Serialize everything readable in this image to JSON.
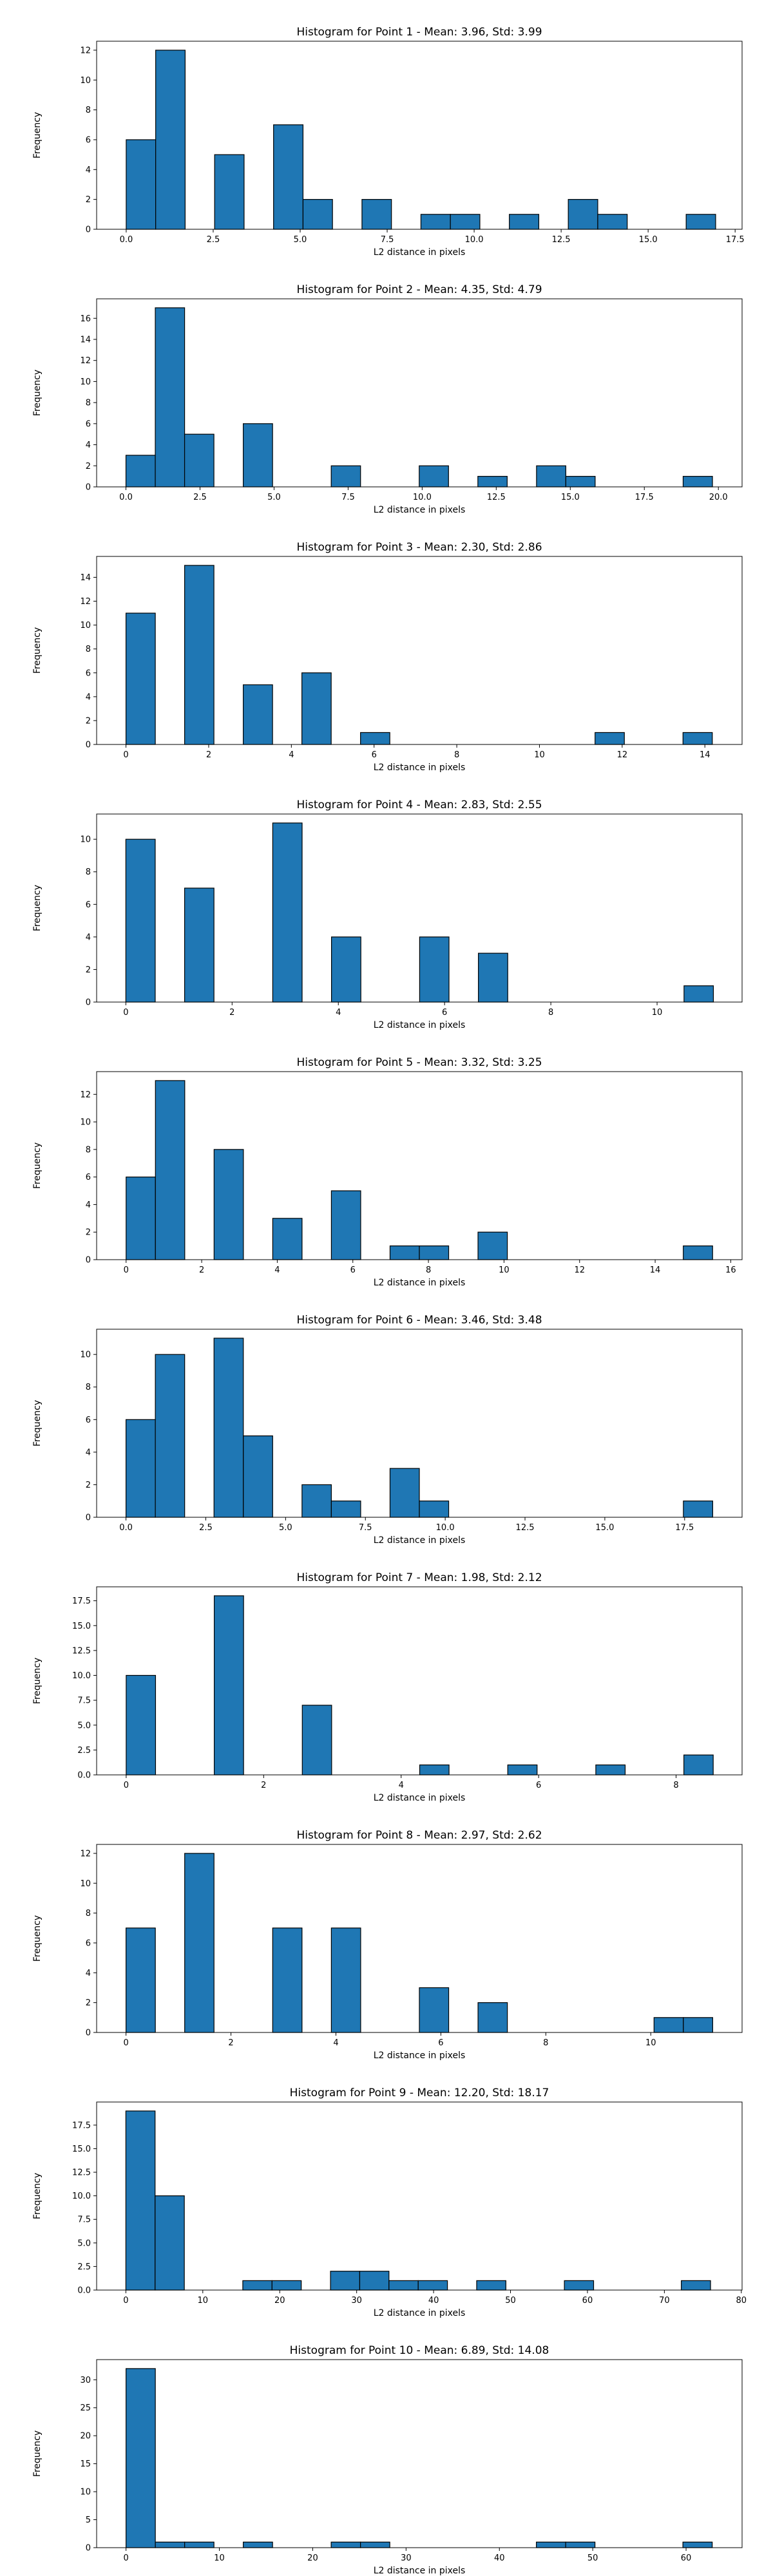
{
  "chart_data": [
    {
      "type": "bar",
      "title": "Histogram for Point 1 - Mean: 3.96, Std: 3.99",
      "xlabel": "L2 distance in pixels",
      "ylabel": "Frequency",
      "xlim": [
        -0.85,
        17.7
      ],
      "ylim": [
        0,
        12.6
      ],
      "xticks": [
        0.0,
        2.5,
        5.0,
        7.5,
        10.0,
        12.5,
        15.0,
        17.5
      ],
      "xtick_labels": [
        "0.0",
        "2.5",
        "5.0",
        "7.5",
        "10.0",
        "12.5",
        "15.0",
        "17.5"
      ],
      "yticks": [
        0,
        2,
        4,
        6,
        8,
        10,
        12
      ],
      "ytick_labels": [
        "0",
        "2",
        "4",
        "6",
        "8",
        "10",
        "12"
      ],
      "bin_edges": [
        0.0,
        0.847,
        1.694,
        2.541,
        3.388,
        4.235,
        5.082,
        5.929,
        6.776,
        7.623,
        8.47,
        9.317,
        10.164,
        11.011,
        11.858,
        12.705,
        13.552,
        14.399,
        15.246,
        16.093,
        16.94
      ],
      "values": [
        6,
        12,
        0,
        5,
        0,
        7,
        2,
        0,
        2,
        0,
        1,
        1,
        0,
        1,
        0,
        2,
        1,
        0,
        0,
        1
      ]
    },
    {
      "type": "bar",
      "title": "Histogram for Point 2 - Mean: 4.35, Std: 4.79",
      "xlabel": "L2 distance in pixels",
      "ylabel": "Frequency",
      "xlim": [
        -0.99,
        20.8
      ],
      "ylim": [
        0,
        17.85
      ],
      "xticks": [
        0.0,
        2.5,
        5.0,
        7.5,
        10.0,
        12.5,
        15.0,
        17.5,
        20.0
      ],
      "xtick_labels": [
        "0.0",
        "2.5",
        "5.0",
        "7.5",
        "10.0",
        "12.5",
        "15.0",
        "17.5",
        "20.0"
      ],
      "yticks": [
        0,
        2,
        4,
        6,
        8,
        10,
        12,
        14,
        16
      ],
      "ytick_labels": [
        "0",
        "2",
        "4",
        "6",
        "8",
        "10",
        "12",
        "14",
        "16"
      ],
      "bin_edges": [
        0.0,
        0.99,
        1.98,
        2.97,
        3.96,
        4.95,
        5.94,
        6.93,
        7.92,
        8.91,
        9.9,
        10.89,
        11.88,
        12.87,
        13.86,
        14.85,
        15.84,
        16.83,
        17.82,
        18.81,
        19.8
      ],
      "values": [
        3,
        17,
        5,
        0,
        6,
        0,
        0,
        2,
        0,
        0,
        2,
        0,
        1,
        0,
        2,
        1,
        0,
        0,
        0,
        1
      ]
    },
    {
      "type": "bar",
      "title": "Histogram for Point 3 - Mean: 2.30, Std: 2.86",
      "xlabel": "L2 distance in pixels",
      "ylabel": "Frequency",
      "xlim": [
        -0.71,
        14.9
      ],
      "ylim": [
        0,
        15.75
      ],
      "xticks": [
        0,
        2,
        4,
        6,
        8,
        10,
        12,
        14
      ],
      "xtick_labels": [
        "0",
        "2",
        "4",
        "6",
        "8",
        "10",
        "12",
        "14"
      ],
      "yticks": [
        0,
        2,
        4,
        6,
        8,
        10,
        12,
        14
      ],
      "ytick_labels": [
        "0",
        "2",
        "4",
        "6",
        "8",
        "10",
        "12",
        "14"
      ],
      "bin_edges": [
        0.0,
        0.709,
        1.418,
        2.127,
        2.836,
        3.545,
        4.254,
        4.963,
        5.672,
        6.381,
        7.09,
        7.799,
        8.508,
        9.217,
        9.926,
        10.635,
        11.344,
        12.053,
        12.762,
        13.471,
        14.18
      ],
      "values": [
        11,
        0,
        15,
        0,
        5,
        0,
        6,
        0,
        1,
        0,
        0,
        0,
        0,
        0,
        0,
        0,
        1,
        0,
        0,
        1
      ]
    },
    {
      "type": "bar",
      "title": "Histogram for Point 4 - Mean: 2.83, Std: 2.55",
      "xlabel": "L2 distance in pixels",
      "ylabel": "Frequency",
      "xlim": [
        -0.55,
        11.6
      ],
      "ylim": [
        0,
        11.55
      ],
      "xticks": [
        0,
        2,
        4,
        6,
        8,
        10
      ],
      "xtick_labels": [
        "0",
        "2",
        "4",
        "6",
        "8",
        "10"
      ],
      "yticks": [
        0,
        2,
        4,
        6,
        8,
        10
      ],
      "ytick_labels": [
        "0",
        "2",
        "4",
        "6",
        "8",
        "10"
      ],
      "bin_edges": [
        0.0,
        0.553,
        1.106,
        1.659,
        2.212,
        2.765,
        3.318,
        3.871,
        4.424,
        4.977,
        5.53,
        6.083,
        6.636,
        7.189,
        7.742,
        8.295,
        8.848,
        9.401,
        9.954,
        10.507,
        11.06
      ],
      "values": [
        10,
        0,
        7,
        0,
        0,
        11,
        0,
        4,
        0,
        0,
        4,
        0,
        3,
        0,
        0,
        0,
        0,
        0,
        0,
        1
      ]
    },
    {
      "type": "bar",
      "title": "Histogram for Point 5 - Mean: 3.32, Std: 3.25",
      "xlabel": "L2 distance in pixels",
      "ylabel": "Frequency",
      "xlim": [
        -0.78,
        16.3
      ],
      "ylim": [
        0,
        13.65
      ],
      "xticks": [
        0,
        2,
        4,
        6,
        8,
        10,
        12,
        14,
        16
      ],
      "xtick_labels": [
        "0",
        "2",
        "4",
        "6",
        "8",
        "10",
        "12",
        "14",
        "16"
      ],
      "yticks": [
        0,
        2,
        4,
        6,
        8,
        10,
        12
      ],
      "ytick_labels": [
        "0",
        "2",
        "4",
        "6",
        "8",
        "10",
        "12"
      ],
      "bin_edges": [
        0.0,
        0.776,
        1.552,
        2.328,
        3.104,
        3.88,
        4.656,
        5.432,
        6.208,
        6.984,
        7.76,
        8.536,
        9.312,
        10.088,
        10.864,
        11.64,
        12.416,
        13.192,
        13.968,
        14.744,
        15.52
      ],
      "values": [
        6,
        13,
        0,
        8,
        0,
        3,
        0,
        5,
        0,
        1,
        1,
        0,
        2,
        0,
        0,
        0,
        0,
        0,
        0,
        1
      ]
    },
    {
      "type": "bar",
      "title": "Histogram for Point 6 - Mean: 3.46, Std: 3.48",
      "xlabel": "L2 distance in pixels",
      "ylabel": "Frequency",
      "xlim": [
        -0.92,
        19.3
      ],
      "ylim": [
        0,
        11.55
      ],
      "xticks": [
        0.0,
        2.5,
        5.0,
        7.5,
        10.0,
        12.5,
        15.0,
        17.5
      ],
      "xtick_labels": [
        "0.0",
        "2.5",
        "5.0",
        "7.5",
        "10.0",
        "12.5",
        "15.0",
        "17.5"
      ],
      "yticks": [
        0,
        2,
        4,
        6,
        8,
        10
      ],
      "ytick_labels": [
        "0",
        "2",
        "4",
        "6",
        "8",
        "10"
      ],
      "bin_edges": [
        0.0,
        0.919,
        1.838,
        2.757,
        3.676,
        4.595,
        5.514,
        6.433,
        7.352,
        8.271,
        9.19,
        10.109,
        11.028,
        11.947,
        12.866,
        13.785,
        14.704,
        15.623,
        16.542,
        17.461,
        18.38
      ],
      "values": [
        6,
        10,
        0,
        11,
        5,
        0,
        2,
        1,
        0,
        3,
        1,
        0,
        0,
        0,
        0,
        0,
        0,
        0,
        0,
        1
      ]
    },
    {
      "type": "bar",
      "title": "Histogram for Point 7 - Mean: 1.98, Std: 2.12",
      "xlabel": "L2 distance in pixels",
      "ylabel": "Frequency",
      "xlim": [
        -0.43,
        8.96
      ],
      "ylim": [
        0,
        18.9
      ],
      "xticks": [
        0,
        2,
        4,
        6,
        8
      ],
      "xtick_labels": [
        "0",
        "2",
        "4",
        "6",
        "8"
      ],
      "yticks": [
        0.0,
        2.5,
        5.0,
        7.5,
        10.0,
        12.5,
        15.0,
        17.5
      ],
      "ytick_labels": [
        "0.0",
        "2.5",
        "5.0",
        "7.5",
        "10.0",
        "12.5",
        "15.0",
        "17.5"
      ],
      "bin_edges": [
        0.0,
        0.427,
        0.854,
        1.281,
        1.708,
        2.135,
        2.562,
        2.989,
        3.416,
        3.843,
        4.27,
        4.697,
        5.124,
        5.551,
        5.978,
        6.405,
        6.832,
        7.259,
        7.686,
        8.113,
        8.54
      ],
      "values": [
        10,
        0,
        0,
        18,
        0,
        0,
        7,
        0,
        0,
        0,
        1,
        0,
        0,
        1,
        0,
        0,
        1,
        0,
        0,
        2
      ]
    },
    {
      "type": "bar",
      "title": "Histogram for Point 8 - Mean: 2.97, Std: 2.62",
      "xlabel": "L2 distance in pixels",
      "ylabel": "Frequency",
      "xlim": [
        -0.56,
        11.74
      ],
      "ylim": [
        0,
        12.6
      ],
      "xticks": [
        0,
        2,
        4,
        6,
        8,
        10
      ],
      "xtick_labels": [
        "0",
        "2",
        "4",
        "6",
        "8",
        "10"
      ],
      "yticks": [
        0,
        2,
        4,
        6,
        8,
        10,
        12
      ],
      "ytick_labels": [
        "0",
        "2",
        "4",
        "6",
        "8",
        "10",
        "12"
      ],
      "bin_edges": [
        0.0,
        0.559,
        1.118,
        1.677,
        2.236,
        2.795,
        3.354,
        3.913,
        4.472,
        5.031,
        5.59,
        6.149,
        6.708,
        7.267,
        7.826,
        8.385,
        8.944,
        9.503,
        10.062,
        10.621,
        11.18
      ],
      "values": [
        7,
        0,
        12,
        0,
        0,
        7,
        0,
        7,
        0,
        0,
        3,
        0,
        2,
        0,
        0,
        0,
        0,
        0,
        1,
        1
      ]
    },
    {
      "type": "bar",
      "title": "Histogram for Point 9 - Mean: 12.20, Std: 18.17",
      "xlabel": "L2 distance in pixels",
      "ylabel": "Frequency",
      "xlim": [
        -3.8,
        80.1
      ],
      "ylim": [
        0,
        19.95
      ],
      "xticks": [
        0,
        10,
        20,
        30,
        40,
        50,
        60,
        70,
        80
      ],
      "xtick_labels": [
        "0",
        "10",
        "20",
        "30",
        "40",
        "50",
        "60",
        "70",
        "80"
      ],
      "yticks": [
        0.0,
        2.5,
        5.0,
        7.5,
        10.0,
        12.5,
        15.0,
        17.5
      ],
      "ytick_labels": [
        "0.0",
        "2.5",
        "5.0",
        "7.5",
        "10.0",
        "12.5",
        "15.0",
        "17.5"
      ],
      "bin_edges": [
        0.0,
        3.8,
        7.6,
        11.4,
        15.2,
        19.0,
        22.8,
        26.6,
        30.4,
        34.2,
        38.0,
        41.8,
        45.6,
        49.4,
        53.2,
        57.0,
        60.8,
        64.6,
        68.4,
        72.2,
        76.0
      ],
      "values": [
        19,
        10,
        0,
        0,
        1,
        1,
        0,
        2,
        2,
        1,
        1,
        0,
        1,
        0,
        0,
        1,
        0,
        0,
        0,
        1
      ]
    },
    {
      "type": "bar",
      "title": "Histogram for Point 10 - Mean: 6.89, Std: 14.08",
      "xlabel": "L2 distance in pixels",
      "ylabel": "Frequency",
      "xlim": [
        -3.15,
        66.0
      ],
      "ylim": [
        0,
        33.6
      ],
      "xticks": [
        0,
        10,
        20,
        30,
        40,
        50,
        60
      ],
      "xtick_labels": [
        "0",
        "10",
        "20",
        "30",
        "40",
        "50",
        "60"
      ],
      "yticks": [
        0,
        5,
        10,
        15,
        20,
        25,
        30
      ],
      "ytick_labels": [
        "0",
        "5",
        "10",
        "15",
        "20",
        "25",
        "30"
      ],
      "bin_edges": [
        0.0,
        3.14,
        6.28,
        9.42,
        12.56,
        15.7,
        18.84,
        21.98,
        25.12,
        28.26,
        31.4,
        34.54,
        37.68,
        40.82,
        43.96,
        47.1,
        50.24,
        53.38,
        56.52,
        59.66,
        62.8
      ],
      "values": [
        32,
        1,
        1,
        0,
        1,
        0,
        0,
        1,
        1,
        0,
        0,
        0,
        0,
        0,
        1,
        1,
        0,
        0,
        0,
        1
      ]
    }
  ]
}
